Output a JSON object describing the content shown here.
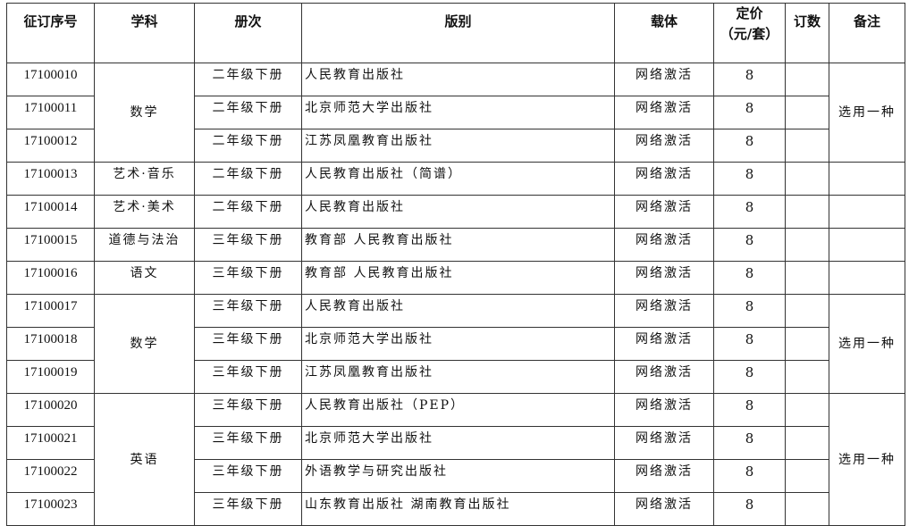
{
  "headers": {
    "id": "征订序号",
    "subject": "学科",
    "volume": "册次",
    "edition": "版别",
    "medium": "载体",
    "price_line1": "定价",
    "price_line2": "（元/套）",
    "orders": "订数",
    "remark": "备注"
  },
  "groups": [
    {
      "subject": "数学",
      "remark": "选用一种",
      "rows": [
        {
          "id": "17100010",
          "volume": "二年级下册",
          "edition": "人民教育出版社",
          "medium": "网络激活",
          "price": "8",
          "orders": ""
        },
        {
          "id": "17100011",
          "volume": "二年级下册",
          "edition": "北京师范大学出版社",
          "medium": "网络激活",
          "price": "8",
          "orders": ""
        },
        {
          "id": "17100012",
          "volume": "二年级下册",
          "edition": "江苏凤凰教育出版社",
          "medium": "网络激活",
          "price": "8",
          "orders": ""
        }
      ]
    },
    {
      "subject": "艺术·音乐",
      "remark": "",
      "rows": [
        {
          "id": "17100013",
          "volume": "二年级下册",
          "edition": "人民教育出版社（简谱）",
          "medium": "网络激活",
          "price": "8",
          "orders": ""
        }
      ]
    },
    {
      "subject": "艺术·美术",
      "remark": "",
      "rows": [
        {
          "id": "17100014",
          "volume": "二年级下册",
          "edition": "人民教育出版社",
          "medium": "网络激活",
          "price": "8",
          "orders": ""
        }
      ]
    },
    {
      "subject": "道德与法治",
      "remark": "",
      "rows": [
        {
          "id": "17100015",
          "volume": "三年级下册",
          "edition": "教育部 人民教育出版社",
          "medium": "网络激活",
          "price": "8",
          "orders": ""
        }
      ]
    },
    {
      "subject": "语文",
      "remark": "",
      "rows": [
        {
          "id": "17100016",
          "volume": "三年级下册",
          "edition": "教育部 人民教育出版社",
          "medium": "网络激活",
          "price": "8",
          "orders": ""
        }
      ]
    },
    {
      "subject": "数学",
      "remark": "选用一种",
      "rows": [
        {
          "id": "17100017",
          "volume": "三年级下册",
          "edition": "人民教育出版社",
          "medium": "网络激活",
          "price": "8",
          "orders": ""
        },
        {
          "id": "17100018",
          "volume": "三年级下册",
          "edition": "北京师范大学出版社",
          "medium": "网络激活",
          "price": "8",
          "orders": ""
        },
        {
          "id": "17100019",
          "volume": "三年级下册",
          "edition": "江苏凤凰教育出版社",
          "medium": "网络激活",
          "price": "8",
          "orders": ""
        }
      ]
    },
    {
      "subject": "英语",
      "remark": "选用一种",
      "rows": [
        {
          "id": "17100020",
          "volume": "三年级下册",
          "edition": "人民教育出版社（PEP）",
          "medium": "网络激活",
          "price": "8",
          "orders": ""
        },
        {
          "id": "17100021",
          "volume": "三年级下册",
          "edition": "北京师范大学出版社",
          "medium": "网络激活",
          "price": "8",
          "orders": ""
        },
        {
          "id": "17100022",
          "volume": "三年级下册",
          "edition": "外语教学与研究出版社",
          "medium": "网络激活",
          "price": "8",
          "orders": ""
        },
        {
          "id": "17100023",
          "volume": "三年级下册",
          "edition": "山东教育出版社 湖南教育出版社",
          "medium": "网络激活",
          "price": "8",
          "orders": ""
        }
      ]
    }
  ]
}
